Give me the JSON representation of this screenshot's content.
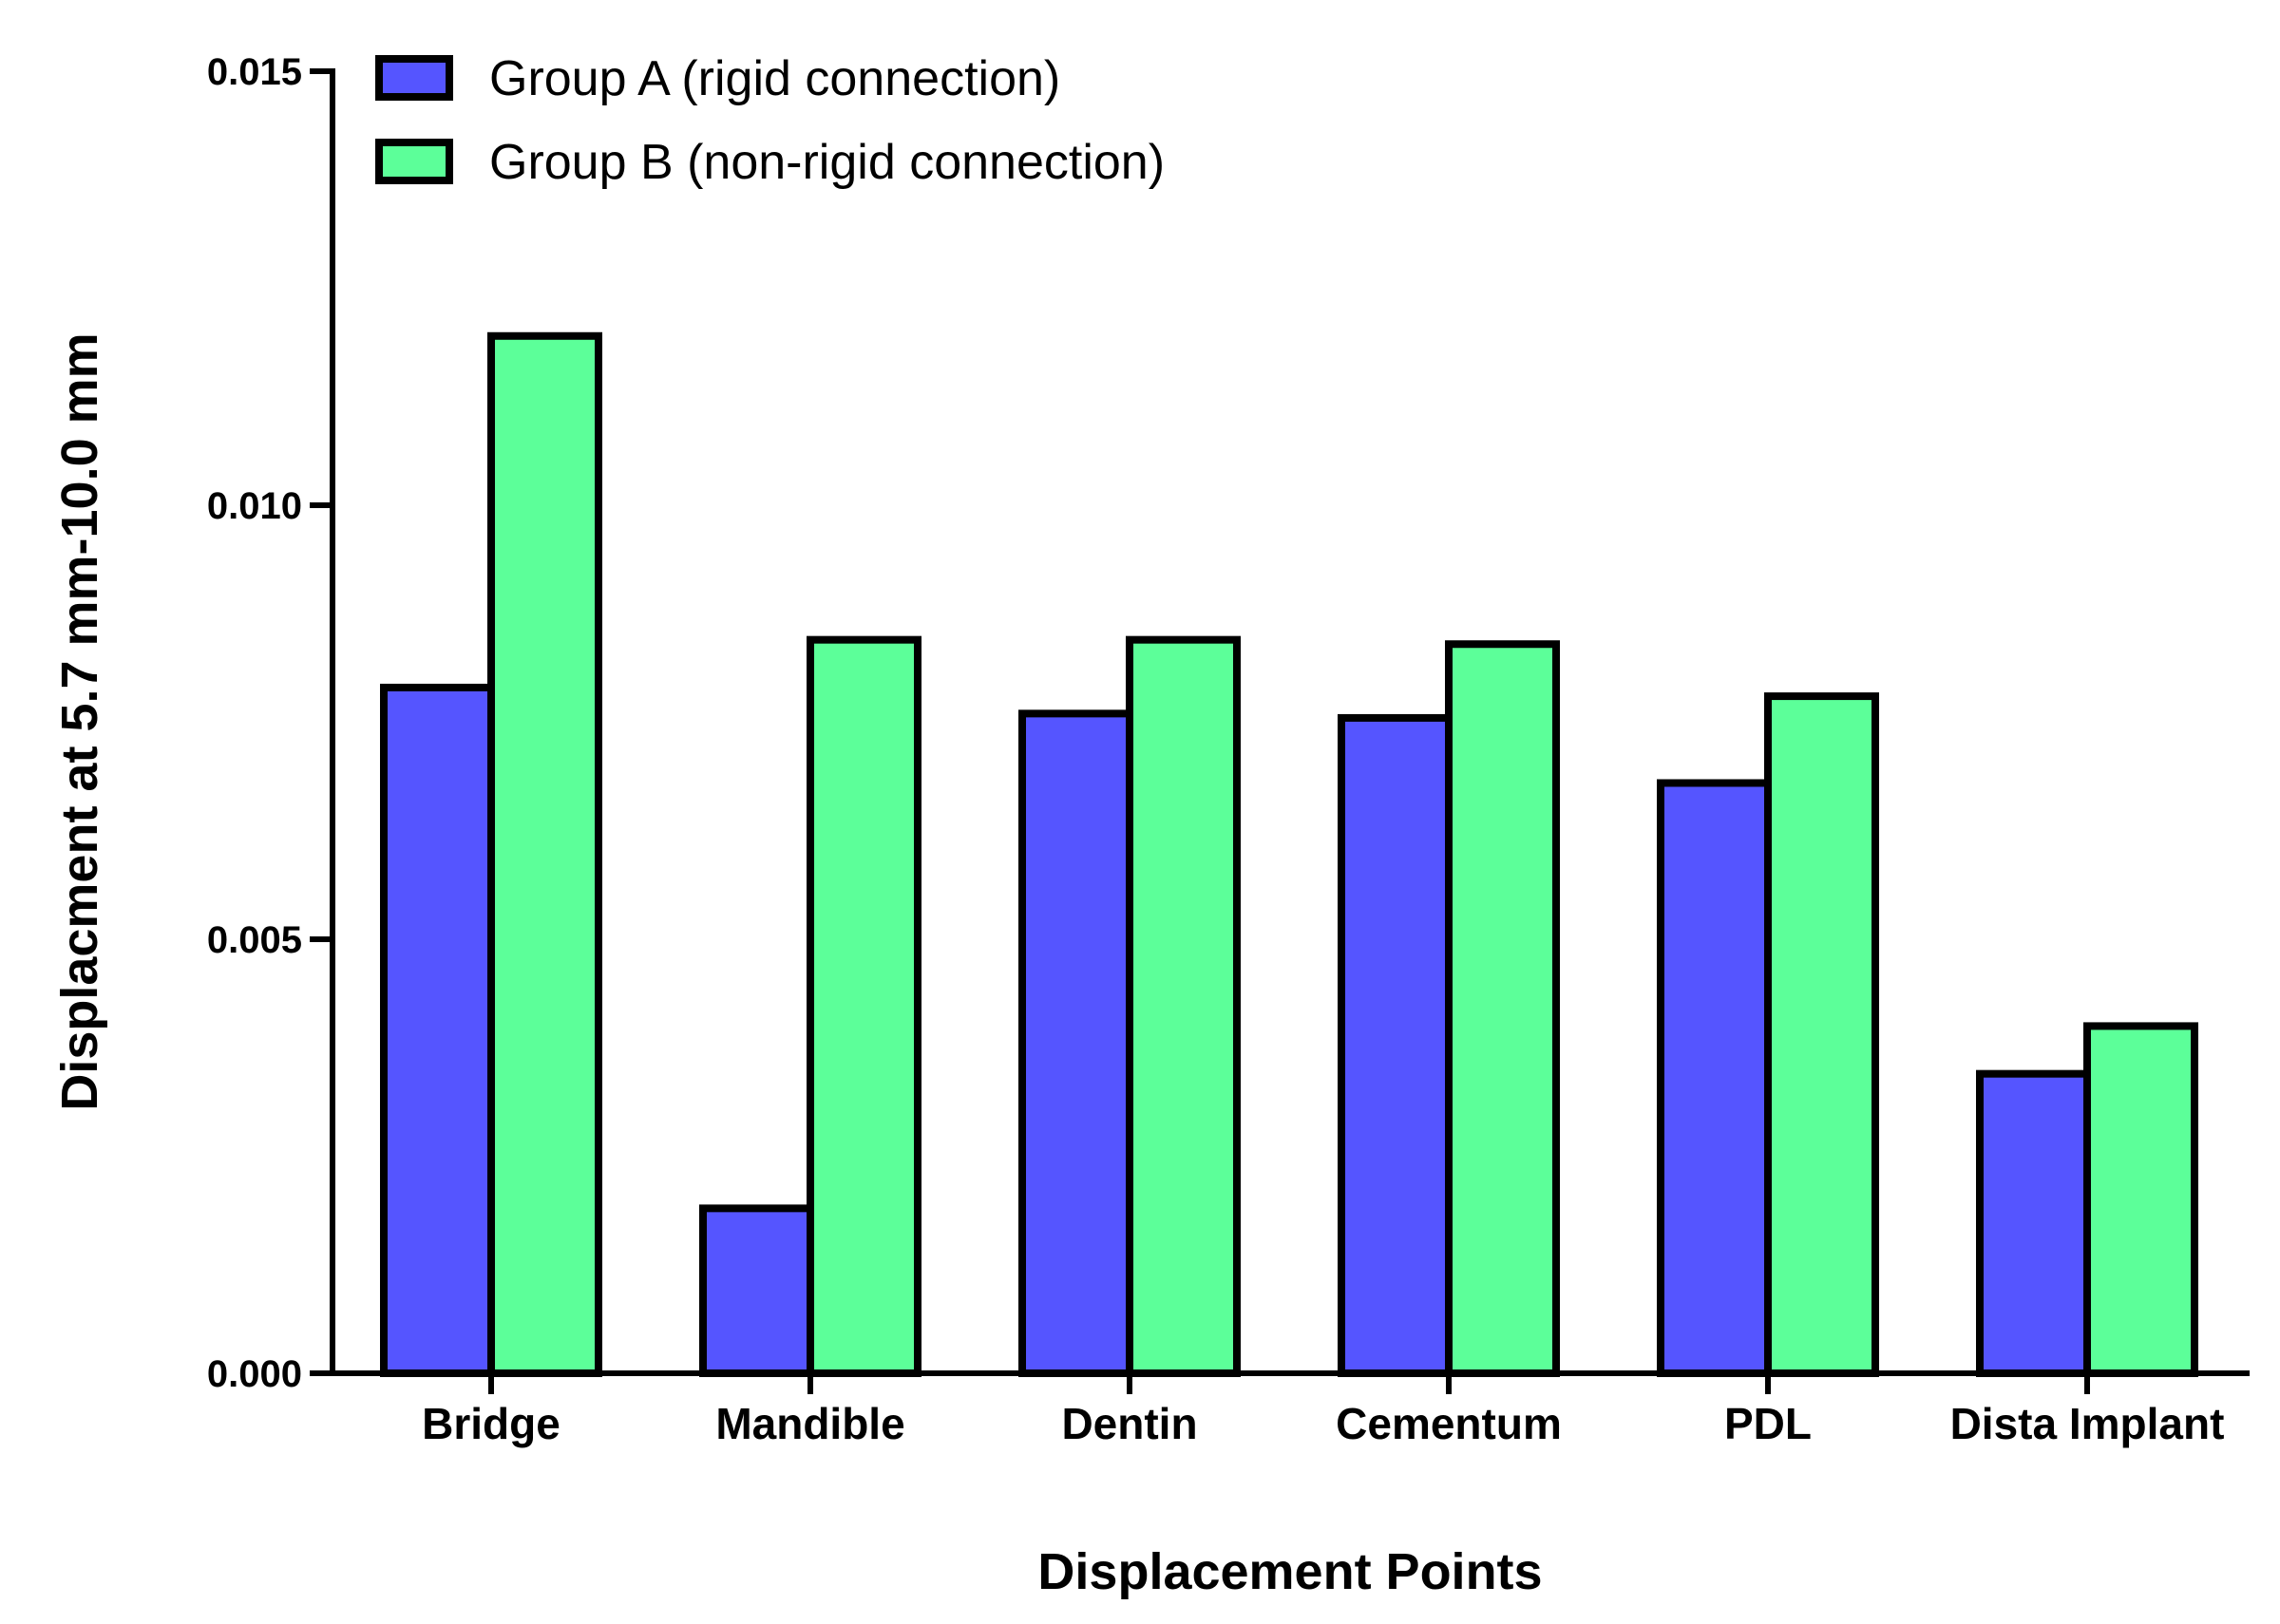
{
  "chart_data": {
    "type": "bar",
    "title": "",
    "xlabel": "Displacement Points",
    "ylabel": "Displacment at 5.7 mm-10.0 mm",
    "ylim": [
      0,
      0.015
    ],
    "yticks": [
      0,
      0.005,
      0.01,
      0.015
    ],
    "ytick_labels": [
      "0.000",
      "0.005",
      "0.010",
      "0.015"
    ],
    "categories": [
      "Bridge",
      "Mandible",
      "Dentin",
      "Cementum",
      "PDL",
      "Dista Implant"
    ],
    "series": [
      {
        "name": "Group A (rigid connection)",
        "color": "#5555ff",
        "values": [
          0.0079,
          0.0019,
          0.0076,
          0.00755,
          0.0068,
          0.00345
        ]
      },
      {
        "name": "Group B (non-rigid connection)",
        "color": "#5cff99",
        "values": [
          0.01195,
          0.00845,
          0.00845,
          0.0084,
          0.0078,
          0.004
        ]
      }
    ],
    "legend_position": "top-left",
    "grid": false
  }
}
